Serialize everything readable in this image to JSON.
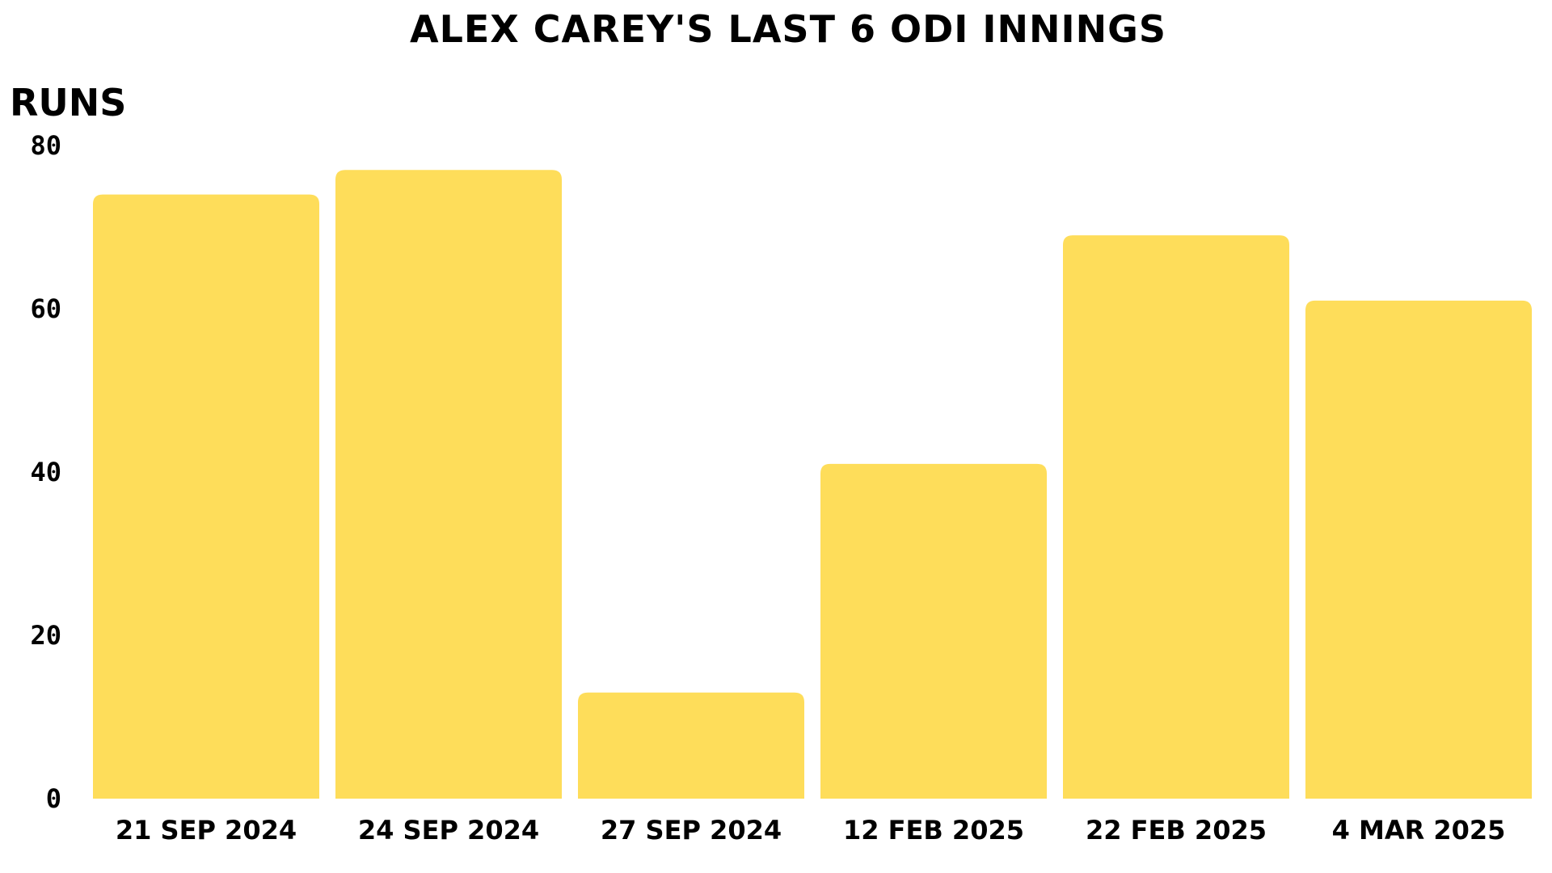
{
  "chart_data": {
    "type": "bar",
    "title": "ALEX CAREY'S LAST 6 ODI INNINGS",
    "xlabel": "",
    "ylabel": "RUNS",
    "categories": [
      "21 SEP 2024",
      "24 SEP 2024",
      "27 SEP 2024",
      "12 FEB 2025",
      "22 FEB 2025",
      "4 MAR 2025"
    ],
    "values": [
      74,
      77,
      13,
      41,
      69,
      61
    ],
    "ylim": [
      0,
      80
    ],
    "yticks": [
      0,
      20,
      40,
      60,
      80
    ],
    "grid": false,
    "legend": "none",
    "colors": {
      "bar": "#FEDD5A",
      "text": "#000000",
      "background": "#FFFFFF"
    }
  }
}
